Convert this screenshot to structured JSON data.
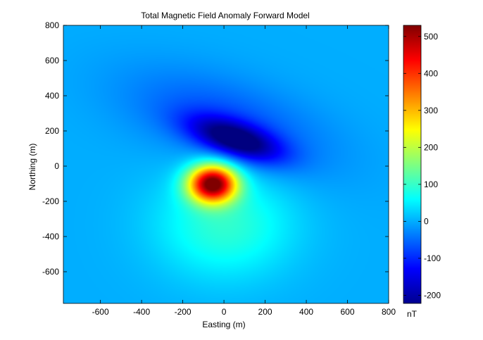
{
  "chart_data": {
    "type": "heatmap",
    "title": "Total Magnetic Field Anomaly Forward Model",
    "xlabel": "Easting (m)",
    "ylabel": "Northing (m)",
    "xlim": [
      -780,
      800
    ],
    "ylim": [
      -780,
      800
    ],
    "xticks": [
      -600,
      -400,
      -200,
      0,
      200,
      400,
      600,
      800
    ],
    "yticks": [
      800,
      600,
      400,
      200,
      0,
      -200,
      -400,
      -600
    ],
    "colormap": "jet",
    "colorbar": {
      "label": "nT",
      "clim": [
        -222,
        530
      ],
      "ticks": [
        500,
        400,
        300,
        200,
        100,
        0,
        -100,
        -200
      ]
    },
    "anomaly": {
      "positive_peak": {
        "x": -55,
        "y": -100,
        "value": 530
      },
      "negative_trough": {
        "x": 60,
        "y": 150,
        "value": -222
      },
      "background_value": 0
    }
  }
}
